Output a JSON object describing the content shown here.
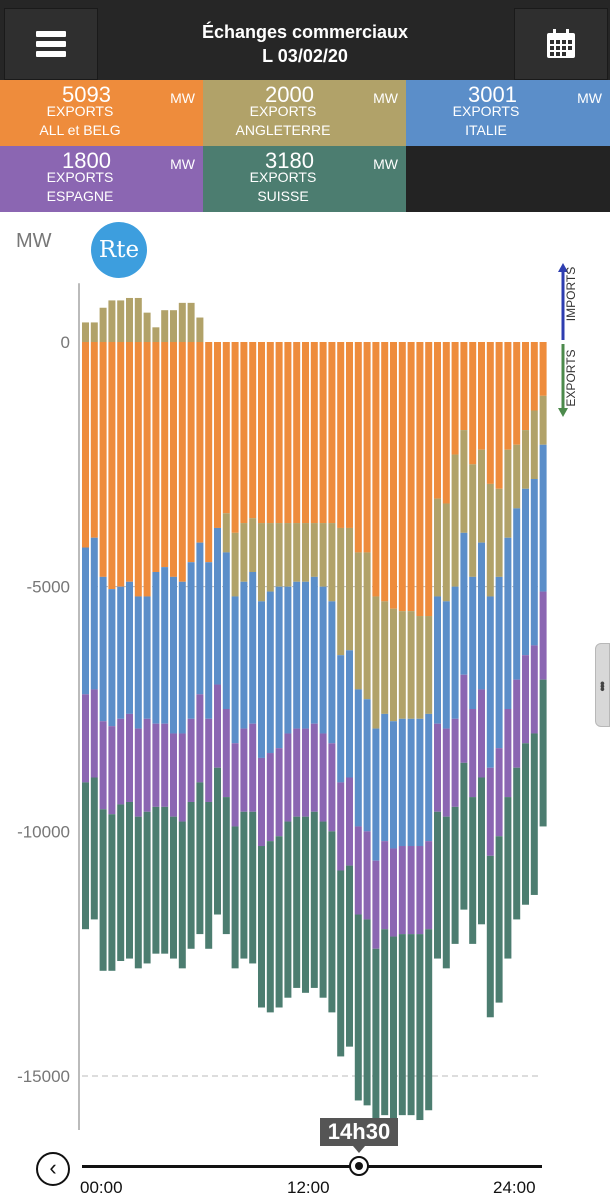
{
  "header": {
    "title_line1": "Échanges commerciaux",
    "title_line2": "L 03/02/20"
  },
  "tiles": [
    {
      "value": "5093",
      "unit": "MW",
      "label1": "EXPORTS",
      "label2": "ALL et BELG",
      "color": "#ee8c3c"
    },
    {
      "value": "2000",
      "unit": "MW",
      "label1": "EXPORTS",
      "label2": "ANGLETERRE",
      "color": "#b1a269"
    },
    {
      "value": "3001",
      "unit": "MW",
      "label1": "EXPORTS",
      "label2": "ITALIE",
      "color": "#5b8ec9"
    },
    {
      "value": "1800",
      "unit": "MW",
      "label1": "EXPORTS",
      "label2": "ESPAGNE",
      "color": "#8b66b2"
    },
    {
      "value": "3180",
      "unit": "MW",
      "label1": "EXPORTS",
      "label2": "SUISSE",
      "color": "#4c7d70"
    }
  ],
  "logo_text": "Rte",
  "legend": {
    "imports": "IMPORTS",
    "exports": "EXPORTS"
  },
  "time_cursor": "14h30",
  "timeline": {
    "start": "00:00",
    "mid": "12:00",
    "end": "24:00",
    "position_fraction": 0.604
  },
  "chart_data": {
    "type": "bar",
    "stacked": true,
    "ylabel": "MW",
    "ylim": [
      -16000,
      1200
    ],
    "yticks": [
      0,
      -5000,
      -10000,
      -15000
    ],
    "ytick_labels": [
      "0",
      "-5000",
      "-10000",
      "-15000"
    ],
    "gridlines": "dashed at -5000 and -15000",
    "x_labels": [
      "00:00",
      "12:00",
      "24:00"
    ],
    "x_range_hours": [
      0,
      24
    ],
    "slot_hours": 0.5,
    "series": [
      {
        "name": "ALL et BELG",
        "color": "#ee8c3c",
        "values": [
          -4200,
          -4000,
          -4800,
          -5050,
          -5000,
          -4900,
          -5200,
          -5200,
          -4700,
          -4600,
          -4800,
          -4900,
          -4500,
          -4100,
          -4500,
          -3800,
          -3500,
          -3900,
          -3700,
          -3600,
          -3700,
          -3700,
          -3700,
          -3700,
          -3700,
          -3700,
          -3700,
          -3700,
          -3700,
          -3800,
          -3800,
          -4300,
          -4300,
          -5200,
          -5300,
          -5450,
          -5500,
          -5500,
          -5600,
          -5600,
          -3200,
          -3300,
          -2300,
          -1800,
          -2500,
          -2200,
          -2900,
          -3000,
          -2200,
          -2100,
          -1800,
          -1400,
          -1100
        ]
      },
      {
        "name": "ANGLETERRE",
        "color": "#b1a269",
        "values": [
          400,
          400,
          700,
          850,
          850,
          900,
          900,
          600,
          300,
          650,
          650,
          800,
          800,
          500,
          0,
          0,
          -800,
          -1300,
          -1200,
          -1100,
          -1600,
          -1400,
          -1300,
          -1300,
          -1200,
          -1200,
          -1100,
          -1300,
          -1600,
          -2600,
          -2500,
          -2800,
          -3000,
          -2700,
          -2300,
          -2300,
          -2200,
          -2200,
          -2100,
          -2000,
          -2000,
          -2000,
          -2700,
          -2100,
          -2300,
          -1900,
          -2300,
          -1800,
          -1800,
          -1300,
          -1200,
          -1400,
          -1000
        ]
      },
      {
        "name": "ITALIE",
        "color": "#5b8ec9",
        "values": [
          -3000,
          -3100,
          -2950,
          -2800,
          -2700,
          -2700,
          -2700,
          -2500,
          -3100,
          -3200,
          -3200,
          -3100,
          -3200,
          -3100,
          -3200,
          -3200,
          -3200,
          -3000,
          -3000,
          -3100,
          -3200,
          -3300,
          -3300,
          -3000,
          -3000,
          -3000,
          -3000,
          -3000,
          -2900,
          -2600,
          -2600,
          -2800,
          -2700,
          -2700,
          -2600,
          -2600,
          -2600,
          -2600,
          -2600,
          -2600,
          -2600,
          -2600,
          -2700,
          -2900,
          -2700,
          -3000,
          -3500,
          -3500,
          -3500,
          -3500,
          -3400,
          -3400,
          -3000
        ]
      },
      {
        "name": "ESPAGNE",
        "color": "#8b66b2",
        "values": [
          -1800,
          -1800,
          -1800,
          -1800,
          -1750,
          -1800,
          -1800,
          -1900,
          -1700,
          -1700,
          -1700,
          -1800,
          -1700,
          -1800,
          -1700,
          -1700,
          -1800,
          -1700,
          -1700,
          -1800,
          -1800,
          -1800,
          -1800,
          -1800,
          -1800,
          -1800,
          -1800,
          -1800,
          -1800,
          -1800,
          -1800,
          -1800,
          -1800,
          -1800,
          -1800,
          -1800,
          -1800,
          -1800,
          -1800,
          -1800,
          -1800,
          -1800,
          -1800,
          -1800,
          -1800,
          -1800,
          -1800,
          -1800,
          -1800,
          -1800,
          -1800,
          -1800,
          -1800
        ]
      },
      {
        "name": "SUISSE",
        "color": "#4c7d70",
        "values": [
          -3000,
          -2900,
          -3300,
          -3200,
          -3200,
          -3200,
          -3100,
          -3100,
          -3000,
          -3000,
          -2900,
          -3000,
          -3000,
          -3100,
          -3000,
          -3000,
          -2800,
          -2900,
          -3000,
          -3100,
          -3300,
          -3500,
          -3500,
          -3600,
          -3500,
          -3600,
          -3600,
          -3600,
          -3700,
          -3800,
          -3700,
          -3800,
          -3800,
          -3800,
          -3800,
          -3800,
          -3700,
          -3700,
          -3800,
          -3700,
          -3000,
          -3100,
          -2800,
          -3000,
          -3000,
          -3000,
          -3300,
          -3400,
          -3300,
          -3100,
          -3300,
          -3300,
          -3000
        ]
      }
    ]
  }
}
